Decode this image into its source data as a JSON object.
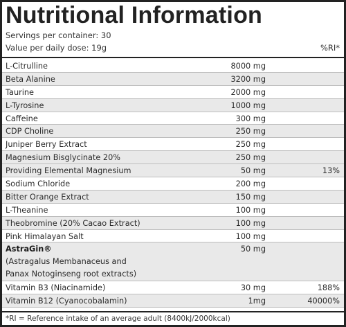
{
  "title": "Nutritional Information",
  "servings": "Servings per container: 30",
  "dose": "Value per daily dose: 19g",
  "ri_header": "%RI*",
  "rows": [
    {
      "name": "L-Citrulline",
      "amount": "8000 mg",
      "ri": "",
      "band": false
    },
    {
      "name": "Beta Alanine",
      "amount": "3200 mg",
      "ri": "",
      "band": true
    },
    {
      "name": "Taurine",
      "amount": "2000 mg",
      "ri": "",
      "band": false
    },
    {
      "name": "L-Tyrosine",
      "amount": "1000 mg",
      "ri": "",
      "band": true
    },
    {
      "name": "Caffeine",
      "amount": "300 mg",
      "ri": "",
      "band": false
    },
    {
      "name": "CDP Choline",
      "amount": "250 mg",
      "ri": "",
      "band": true
    },
    {
      "name": "Juniper Berry Extract",
      "amount": "250 mg",
      "ri": "",
      "band": false
    },
    {
      "name": "Magnesium Bisglycinate 20%",
      "amount": "250 mg",
      "ri": "",
      "band": true
    },
    {
      "name": "Providing Elemental Magnesium",
      "amount": "50 mg",
      "ri": "13%",
      "band": true
    },
    {
      "name": "Sodium Chloride",
      "amount": "200 mg",
      "ri": "",
      "band": false
    },
    {
      "name": "Bitter Orange Extract",
      "amount": "150 mg",
      "ri": "",
      "band": true
    },
    {
      "name": "L-Theanine",
      "amount": "100 mg",
      "ri": "",
      "band": false
    },
    {
      "name": "Theobromine (20% Cacao Extract)",
      "amount": "100 mg",
      "ri": "",
      "band": true
    },
    {
      "name": "Pink Himalayan Salt",
      "amount": "100 mg",
      "ri": "",
      "band": false
    }
  ],
  "astragin": {
    "name": "AstraGin®",
    "detail_line1": "(Astragalus Membanaceus and",
    "detail_line2": "Panax Notoginseng root extracts)",
    "amount": "50 mg",
    "ri": ""
  },
  "rows_after": [
    {
      "name": "Vitamin B3 (Niacinamide)",
      "amount": "30 mg",
      "ri": "188%",
      "band": false
    },
    {
      "name": "Vitamin B12 (Cyanocobalamin)",
      "amount": "1mg",
      "ri": "40000%",
      "band": true
    }
  ],
  "footnote": "*RI = Reference intake of an average adult (8400kJ/2000kcal)"
}
